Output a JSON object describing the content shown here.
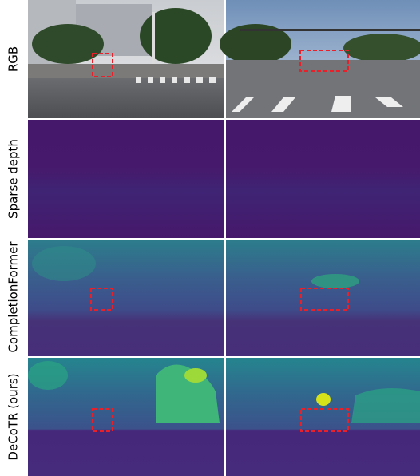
{
  "rows": [
    {
      "label": "RGB"
    },
    {
      "label": "Sparse depth"
    },
    {
      "label": "CompletionFormer"
    },
    {
      "label": "DeCoTR (ours)"
    }
  ]
}
